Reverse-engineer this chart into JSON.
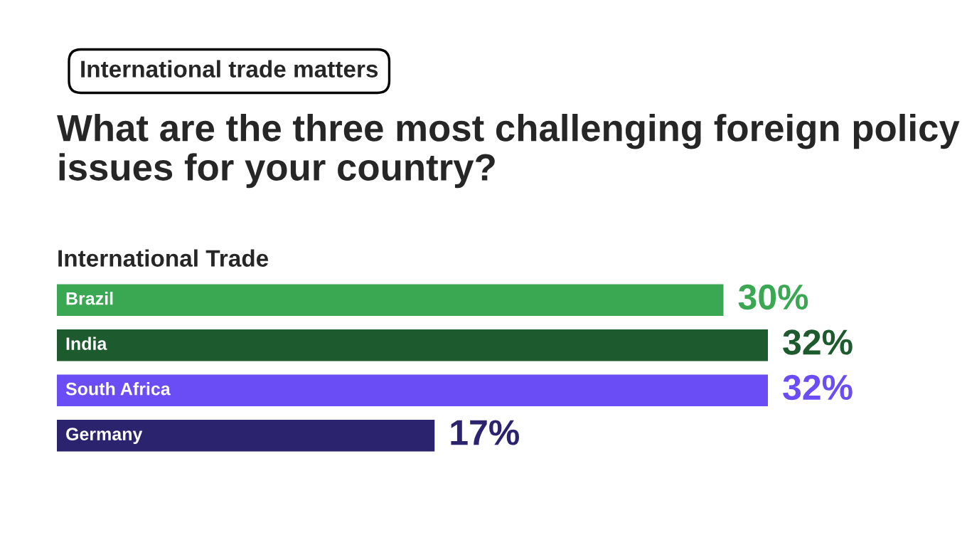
{
  "chart_data": {
    "type": "bar",
    "orientation": "horizontal",
    "title": "What are the three most challenging foreign policy issues for your country?",
    "subtitle": "International Trade",
    "annotations": [
      "International trade matters"
    ],
    "categories": [
      "Brazil",
      "India",
      "South Africa",
      "Germany"
    ],
    "values": [
      30,
      32,
      32,
      17
    ],
    "colors": [
      "#3aa853",
      "#1d5a2e",
      "#6a4df5",
      "#2b236e"
    ],
    "value_labels": [
      "30%",
      "32%",
      "32%",
      "17%"
    ],
    "legend": false
  }
}
